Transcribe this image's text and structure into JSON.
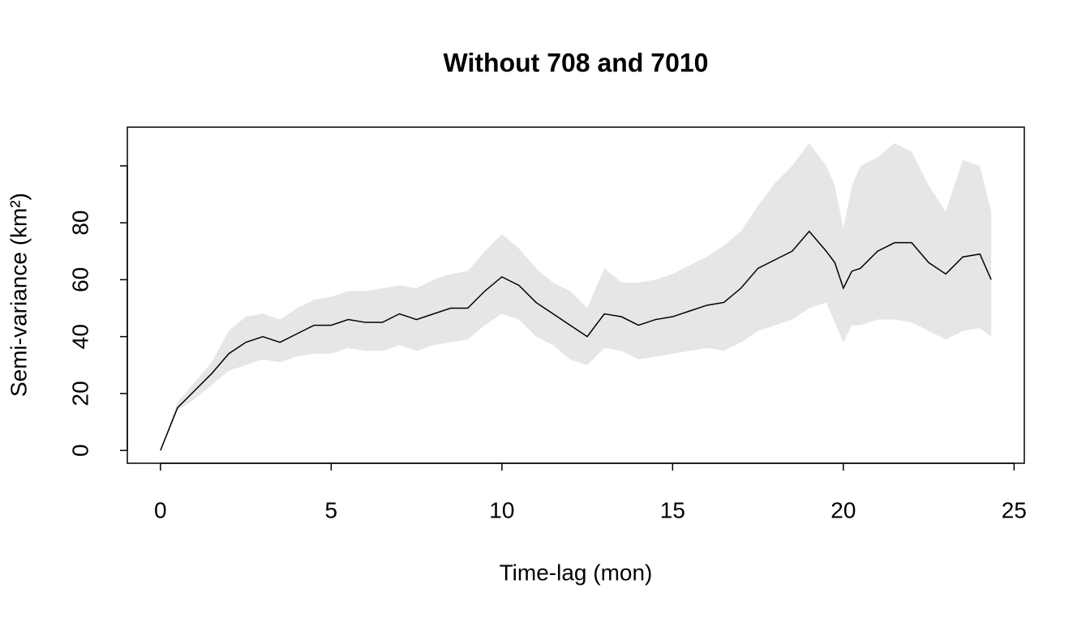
{
  "chart_data": {
    "type": "line",
    "title": "Without 708 and 7010",
    "xlabel": "Time-lag (mon)",
    "ylabel": "Semi-variance (km²)",
    "x": [
      0,
      0.5,
      1,
      1.5,
      2,
      2.5,
      3,
      3.5,
      4,
      4.5,
      5,
      5.5,
      6,
      6.5,
      7,
      7.5,
      8,
      8.5,
      9,
      9.5,
      10,
      10.5,
      11,
      11.5,
      12,
      12.5,
      13,
      13.5,
      14,
      14.5,
      15,
      15.5,
      16,
      16.5,
      17,
      17.5,
      18,
      18.5,
      19,
      19.5,
      19.75,
      20,
      20.25,
      20.5,
      21,
      21.5,
      22,
      22.5,
      23,
      23.5,
      24,
      24.33
    ],
    "values": [
      0,
      15,
      21,
      27,
      34,
      38,
      40,
      38,
      41,
      44,
      44,
      46,
      45,
      45,
      48,
      46,
      48,
      50,
      50,
      56,
      61,
      58,
      52,
      48,
      44,
      40,
      48,
      47,
      44,
      46,
      47,
      49,
      51,
      52,
      57,
      64,
      67,
      70,
      77,
      70,
      66,
      57,
      63,
      64,
      70,
      73,
      73,
      66,
      62,
      68,
      69,
      60
    ],
    "lower": [
      0,
      14,
      18,
      23,
      28,
      30,
      32,
      31,
      33,
      34,
      34,
      36,
      35,
      35,
      37,
      35,
      37,
      38,
      39,
      44,
      48,
      46,
      40,
      37,
      32,
      30,
      36,
      35,
      32,
      33,
      34,
      35,
      36,
      35,
      38,
      42,
      44,
      46,
      50,
      52,
      45,
      38,
      44,
      44,
      46,
      46,
      45,
      42,
      39,
      42,
      43,
      40
    ],
    "upper": [
      0,
      17,
      24,
      31,
      42,
      47,
      48,
      46,
      50,
      53,
      54,
      56,
      56,
      57,
      58,
      57,
      60,
      62,
      63,
      70,
      76,
      71,
      64,
      59,
      56,
      50,
      64,
      59,
      59,
      60,
      62,
      65,
      68,
      72,
      77,
      86,
      94,
      100,
      108,
      100,
      93,
      78,
      93,
      100,
      103,
      108,
      105,
      93,
      84,
      102,
      100,
      84
    ],
    "color": "#000000",
    "band_color": "#e6e6e6",
    "xlim": [
      -0.97,
      25.3
    ],
    "ylim": [
      -4.5,
      113.6
    ],
    "xticks": [
      0,
      5,
      10,
      15,
      20,
      25
    ],
    "yticks": [
      0,
      20,
      40,
      60,
      80
    ],
    "unlabeled_yticks": [
      100
    ]
  }
}
